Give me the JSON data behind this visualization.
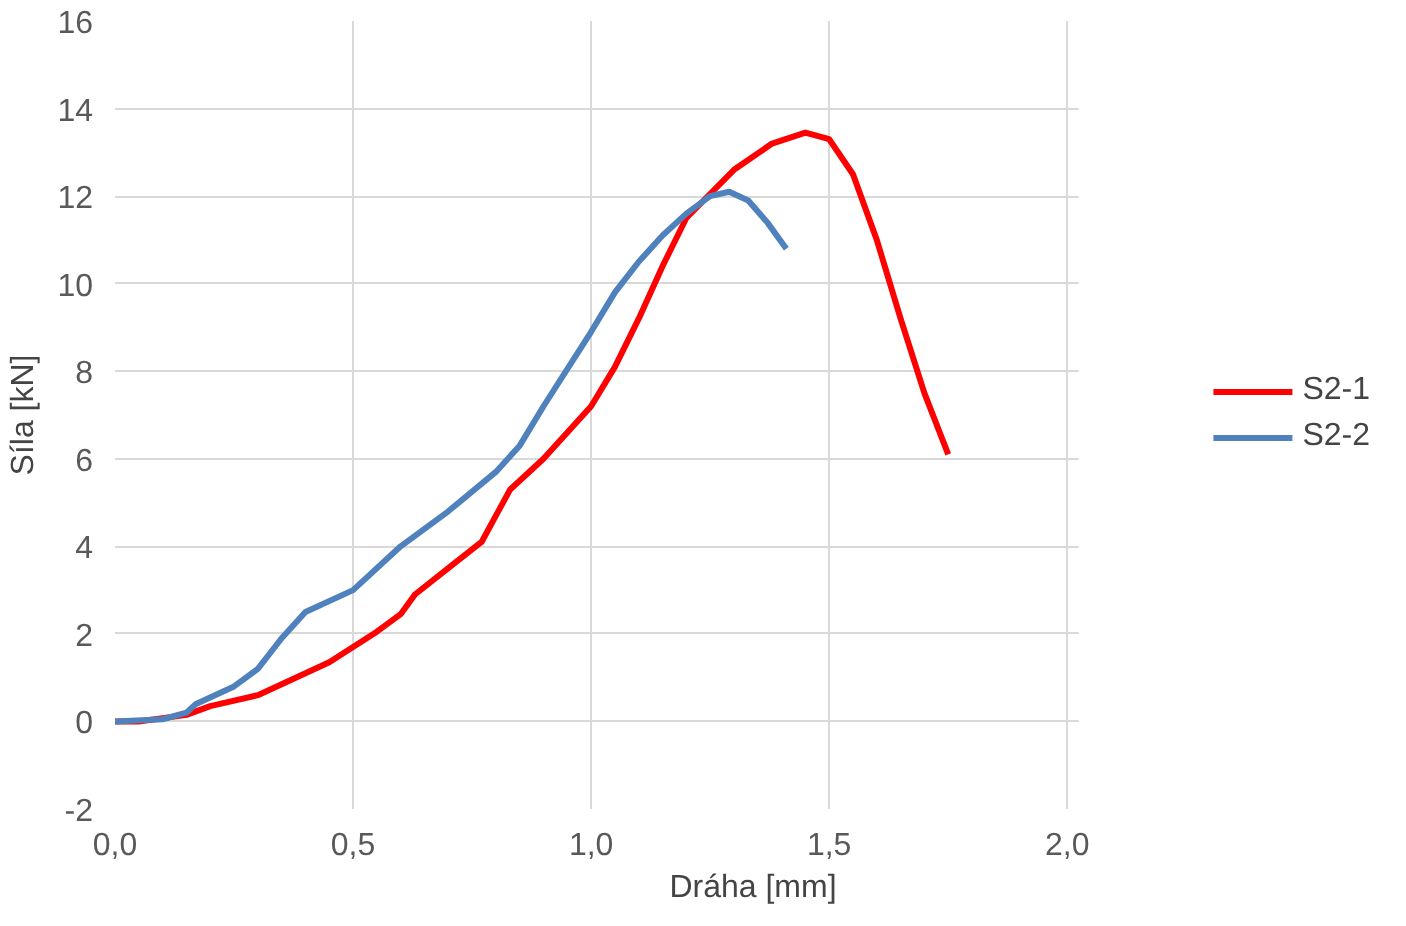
{
  "chart_data": {
    "type": "line",
    "xlabel": "Dráha [mm]",
    "ylabel": "Síla [kN]",
    "xlim": [
      0,
      2
    ],
    "xticks": [
      {
        "value": 0,
        "label": "0,0"
      },
      {
        "value": 0.5,
        "label": "0,5"
      },
      {
        "value": 1,
        "label": "1,0"
      },
      {
        "value": 1.5,
        "label": "1,5"
      },
      {
        "value": 2,
        "label": "2,0"
      }
    ],
    "ylim": [
      -2,
      16
    ],
    "yticks": [
      -2,
      0,
      2,
      4,
      6,
      8,
      10,
      12,
      14,
      16
    ],
    "grid": true,
    "legend": "right",
    "marker": "none",
    "line_style": "solid",
    "series": [
      {
        "name": "S2-1",
        "color": "#ff0000",
        "x": [
          0,
          0.05,
          0.15,
          0.2,
          0.3,
          0.35,
          0.4,
          0.45,
          0.5,
          0.55,
          0.6,
          0.63,
          0.7,
          0.77,
          0.8,
          0.83,
          0.9,
          1.0,
          1.05,
          1.1,
          1.15,
          1.2,
          1.3,
          1.38,
          1.45,
          1.5,
          1.55,
          1.6,
          1.65,
          1.7,
          1.75
        ],
        "values": [
          0,
          0,
          0.15,
          0.35,
          0.6,
          0.85,
          1.1,
          1.35,
          1.7,
          2.05,
          2.45,
          2.9,
          3.5,
          4.1,
          4.7,
          5.3,
          6.0,
          7.2,
          8.1,
          9.2,
          10.4,
          11.5,
          12.6,
          13.2,
          13.45,
          13.3,
          12.5,
          11.0,
          9.2,
          7.5,
          6.1
        ]
      },
      {
        "name": "S2-2",
        "color": "#4f81bd",
        "x": [
          0,
          0.1,
          0.15,
          0.17,
          0.25,
          0.3,
          0.35,
          0.4,
          0.5,
          0.6,
          0.7,
          0.8,
          0.85,
          0.9,
          1.0,
          1.05,
          1.1,
          1.15,
          1.2,
          1.25,
          1.29,
          1.33,
          1.37,
          1.41
        ],
        "values": [
          0,
          0.05,
          0.2,
          0.4,
          0.8,
          1.2,
          1.9,
          2.5,
          3.0,
          4.0,
          4.8,
          5.7,
          6.3,
          7.2,
          8.9,
          9.8,
          10.5,
          11.1,
          11.6,
          12.0,
          12.1,
          11.9,
          11.4,
          10.8
        ]
      }
    ]
  }
}
